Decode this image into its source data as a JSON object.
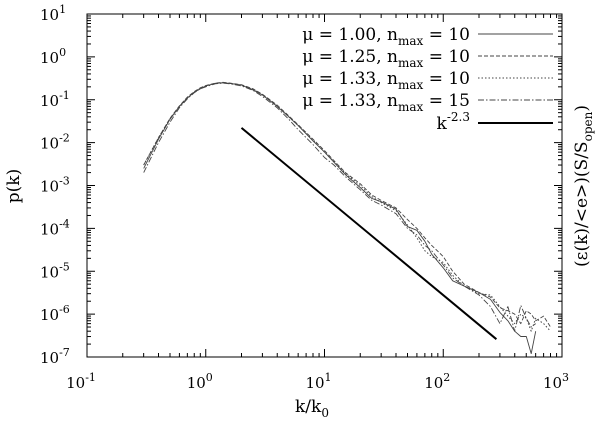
{
  "chart_data": {
    "type": "line",
    "xscale": "log",
    "yscale": "log",
    "xlim": [
      0.1,
      1000
    ],
    "ylim": [
      1e-07,
      10
    ],
    "x_ticks": [
      {
        "value": 0.1,
        "base": "10",
        "exp": "-1"
      },
      {
        "value": 1,
        "base": "10",
        "exp": "0"
      },
      {
        "value": 10,
        "base": "10",
        "exp": "1"
      },
      {
        "value": 100,
        "base": "10",
        "exp": "2"
      },
      {
        "value": 1000,
        "base": "10",
        "exp": "3"
      }
    ],
    "y_ticks": [
      {
        "value": 10,
        "base": "10",
        "exp": "1"
      },
      {
        "value": 1,
        "base": "10",
        "exp": "0"
      },
      {
        "value": 0.1,
        "base": "10",
        "exp": "-1"
      },
      {
        "value": 0.01,
        "base": "10",
        "exp": "-2"
      },
      {
        "value": 0.001,
        "base": "10",
        "exp": "-3"
      },
      {
        "value": 0.0001,
        "base": "10",
        "exp": "-4"
      },
      {
        "value": 1e-05,
        "base": "10",
        "exp": "-5"
      },
      {
        "value": 1e-06,
        "base": "10",
        "exp": "-6"
      },
      {
        "value": 1e-07,
        "base": "10",
        "exp": "-7"
      }
    ],
    "xlabel": {
      "main": "k/k",
      "sub": "0"
    },
    "ylabel": "p(k)",
    "y2label": {
      "main": "(ε(k)/<e>)(S/S",
      "sub": "open",
      "tail": ")"
    },
    "legend_position": "top-right",
    "series": [
      {
        "legend": {
          "prefix": "μ = 1.00, n",
          "sub": "max",
          "suffix": " = 10"
        },
        "style": "solid",
        "x": [
          0.3,
          0.4,
          0.5,
          0.6,
          0.7,
          0.8,
          0.9,
          1.0,
          1.2,
          1.4,
          1.6,
          2.0,
          2.5,
          3,
          4,
          5,
          6,
          8,
          10,
          12,
          15,
          20,
          25,
          30,
          40,
          50,
          60,
          70,
          80,
          100,
          120,
          150,
          200,
          250,
          300,
          350,
          400,
          450,
          500,
          550,
          600
        ],
        "y": [
          0.0025,
          0.012,
          0.035,
          0.07,
          0.11,
          0.15,
          0.18,
          0.21,
          0.24,
          0.25,
          0.24,
          0.22,
          0.17,
          0.13,
          0.07,
          0.04,
          0.025,
          0.011,
          0.006,
          0.0035,
          0.0018,
          0.0009,
          0.0005,
          0.00042,
          0.00028,
          0.00011,
          9e-05,
          5e-05,
          2.5e-05,
          1.2e-05,
          6e-06,
          4.5e-06,
          3.2e-06,
          2.2e-06,
          1.1e-06,
          7e-07,
          4e-07,
          3e-07,
          3e-07,
          1.2e-07,
          4e-07
        ]
      },
      {
        "legend": {
          "prefix": "μ = 1.25, n",
          "sub": "max",
          "suffix": " = 10"
        },
        "style": "dashed",
        "x": [
          0.3,
          0.4,
          0.5,
          0.6,
          0.7,
          0.8,
          0.9,
          1.0,
          1.2,
          1.4,
          1.6,
          2.0,
          2.5,
          3,
          4,
          5,
          6,
          8,
          10,
          12,
          15,
          20,
          25,
          30,
          40,
          50,
          60,
          70,
          80,
          100,
          120,
          150,
          200,
          250,
          300,
          350,
          400,
          450,
          500,
          550,
          600,
          700,
          800
        ],
        "y": [
          0.003,
          0.013,
          0.037,
          0.072,
          0.115,
          0.155,
          0.19,
          0.215,
          0.245,
          0.255,
          0.245,
          0.225,
          0.18,
          0.135,
          0.075,
          0.042,
          0.026,
          0.012,
          0.0065,
          0.0038,
          0.002,
          0.0011,
          0.0006,
          0.00045,
          0.0003,
          0.00016,
          0.0001,
          6e-05,
          4e-05,
          2.2e-05,
          1e-05,
          5e-06,
          3.2e-06,
          2.5e-06,
          1.4e-06,
          1.2e-06,
          1e-06,
          6e-07,
          1.2e-06,
          1e-06,
          7e-07,
          9e-07,
          5e-07
        ]
      },
      {
        "legend": {
          "prefix": "μ = 1.33, n",
          "sub": "max",
          "suffix": " = 10"
        },
        "style": "dotted",
        "x": [
          0.3,
          0.4,
          0.5,
          0.6,
          0.7,
          0.8,
          0.9,
          1.0,
          1.2,
          1.4,
          1.6,
          2.0,
          2.5,
          3,
          4,
          5,
          6,
          8,
          10,
          12,
          15,
          20,
          25,
          30,
          40,
          50,
          60,
          70,
          80,
          100,
          120,
          150,
          200,
          250,
          300,
          350,
          400,
          450,
          500,
          550,
          600,
          700,
          800
        ],
        "y": [
          0.003,
          0.013,
          0.036,
          0.07,
          0.112,
          0.15,
          0.185,
          0.21,
          0.24,
          0.25,
          0.24,
          0.22,
          0.175,
          0.13,
          0.072,
          0.04,
          0.025,
          0.0115,
          0.006,
          0.0036,
          0.0019,
          0.001,
          0.00055,
          0.0004,
          0.00026,
          0.00012,
          6e-05,
          3e-05,
          2.2e-05,
          1.6e-05,
          8e-06,
          4.5e-06,
          3e-06,
          2.8e-06,
          1.5e-06,
          9e-07,
          6e-07,
          1e-06,
          8e-07,
          4e-07,
          8e-07,
          6e-07,
          4e-07
        ]
      },
      {
        "legend": {
          "prefix": "μ = 1.33, n",
          "sub": "max",
          "suffix": " = 15"
        },
        "style": "dashdot",
        "x": [
          0.3,
          0.4,
          0.5,
          0.6,
          0.7,
          0.8,
          0.9,
          1.0,
          1.2,
          1.4,
          1.6,
          2.0,
          2.5,
          3,
          4,
          5,
          6,
          8,
          10,
          12,
          15,
          20,
          25,
          30,
          40,
          50,
          60,
          70,
          80,
          100,
          120,
          150,
          200,
          250,
          300,
          350,
          400,
          450,
          500,
          550,
          600
        ],
        "y": [
          0.002,
          0.01,
          0.03,
          0.065,
          0.105,
          0.145,
          0.18,
          0.2,
          0.235,
          0.245,
          0.235,
          0.21,
          0.165,
          0.12,
          0.065,
          0.035,
          0.02,
          0.009,
          0.0045,
          0.003,
          0.0016,
          0.0008,
          0.00045,
          0.00035,
          0.00022,
          0.0001,
          7e-05,
          4e-05,
          3e-05,
          1.4e-05,
          7e-06,
          4.5e-06,
          2.8e-06,
          1.5e-06,
          6e-07,
          1.5e-06,
          4e-07,
          1.6e-06,
          8e-07,
          5e-07,
          6e-07
        ]
      },
      {
        "legend": {
          "prefix": "k",
          "sup": "-2.3"
        },
        "style": "bold",
        "x": [
          2,
          280
        ],
        "y": [
          0.022,
          2.6e-07
        ]
      }
    ]
  }
}
